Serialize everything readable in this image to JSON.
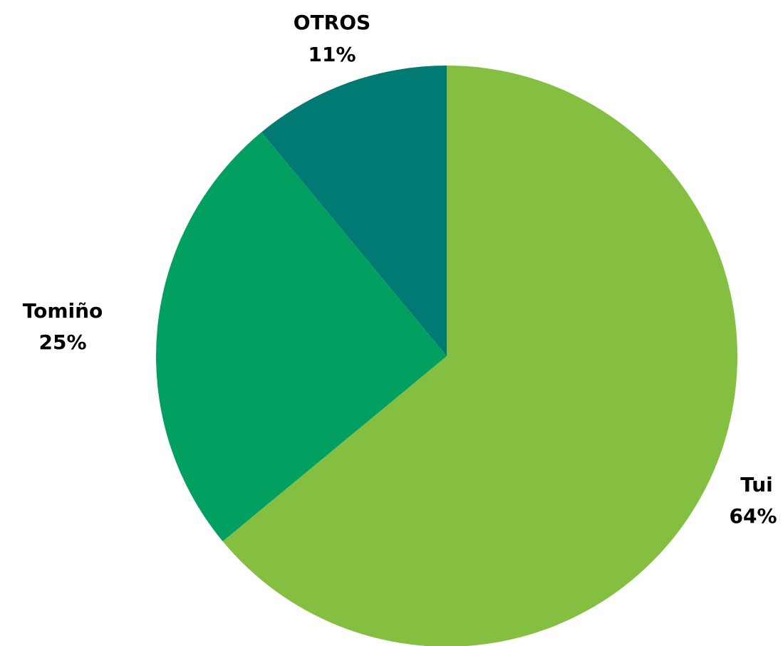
{
  "chart_data": {
    "type": "pie",
    "title": "",
    "slices": [
      {
        "label": "Tui",
        "value": 64,
        "value_label": "64%",
        "color": "#84bf41"
      },
      {
        "label": "Tomiño",
        "value": 25,
        "value_label": "25%",
        "color": "#02a060"
      },
      {
        "label": "OTROS",
        "value": 11,
        "value_label": "11%",
        "color": "#007a72"
      }
    ],
    "start_angle": "12 o'clock",
    "direction": "clockwise",
    "legend": "none"
  }
}
